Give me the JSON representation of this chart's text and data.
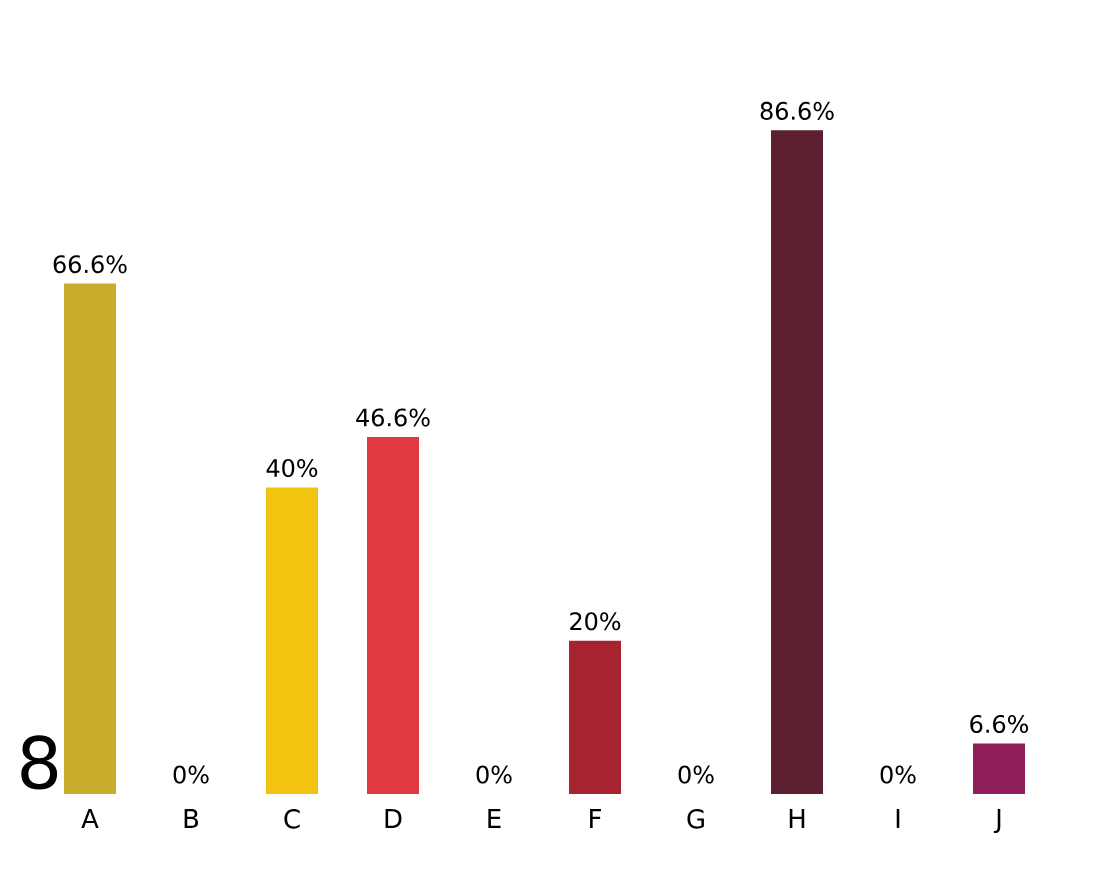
{
  "chart_data": {
    "type": "bar",
    "categories": [
      "A",
      "B",
      "C",
      "D",
      "E",
      "F",
      "G",
      "H",
      "I",
      "J"
    ],
    "values": [
      66.6,
      0,
      40,
      46.6,
      0,
      20,
      0,
      86.6,
      0,
      6.6
    ],
    "value_labels": [
      "66.6%",
      "0%",
      "40%",
      "46.6%",
      "0%",
      "20%",
      "0%",
      "86.6%",
      "0%",
      "6.6%"
    ],
    "colors": [
      "#c9ad2a",
      "#c9ad2a",
      "#f2c40f",
      "#e2383f",
      "#e2383f",
      "#a6232f",
      "#a6232f",
      "#5b1f2f",
      "#5b1f2f",
      "#8f1d5a"
    ],
    "annotations": [
      "8"
    ]
  }
}
